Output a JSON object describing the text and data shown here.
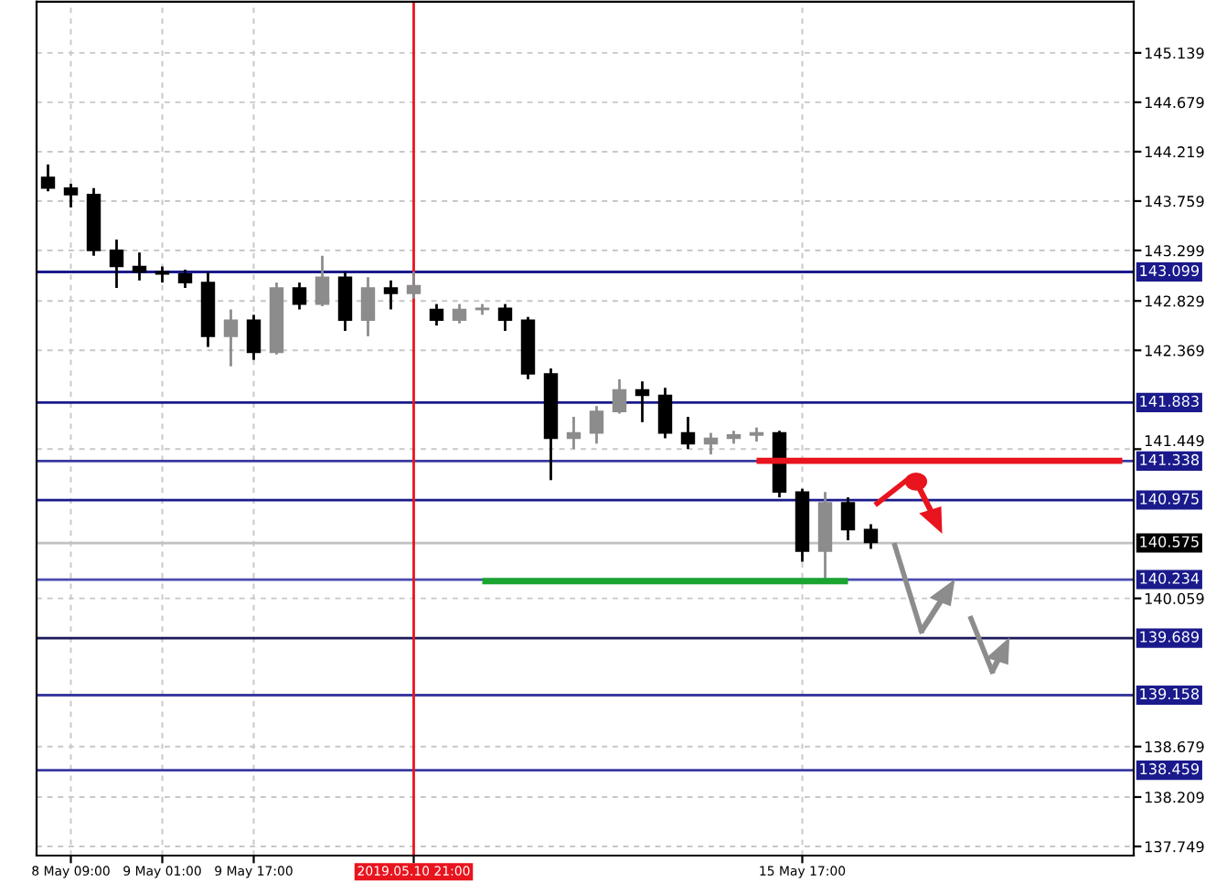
{
  "chart_data": {
    "type": "candlestick",
    "categories": [
      null,
      "8 May 09:00",
      null,
      null,
      null,
      "9 May 01:00",
      null,
      null,
      null,
      "9 May 17:00",
      null,
      null,
      null,
      null,
      null,
      null,
      "2019.05.10 21:00",
      null,
      null,
      null,
      null,
      null,
      null,
      null,
      null,
      null,
      null,
      null,
      null,
      null,
      null,
      null,
      null,
      "15 May 17:00",
      null,
      null,
      null,
      null,
      null,
      null,
      null,
      null,
      null,
      null,
      null,
      null,
      null,
      null
    ],
    "ohlc": [
      [
        143.98,
        144.1,
        143.85,
        143.88
      ],
      [
        143.88,
        143.92,
        143.7,
        143.82
      ],
      [
        143.82,
        143.88,
        143.25,
        143.3
      ],
      [
        143.3,
        143.4,
        142.95,
        143.15
      ],
      [
        143.15,
        143.28,
        143.02,
        143.1
      ],
      [
        143.1,
        143.15,
        143.0,
        143.08
      ],
      [
        143.08,
        143.12,
        142.95,
        143.0
      ],
      [
        143.0,
        143.1,
        142.4,
        142.5
      ],
      [
        142.5,
        142.75,
        142.22,
        142.65
      ],
      [
        142.65,
        142.7,
        142.28,
        142.35
      ],
      [
        142.35,
        143.0,
        142.33,
        142.95
      ],
      [
        142.95,
        143.0,
        142.75,
        142.8
      ],
      [
        142.8,
        143.25,
        142.78,
        143.05
      ],
      [
        143.05,
        143.1,
        142.55,
        142.65
      ],
      [
        142.65,
        143.05,
        142.5,
        142.95
      ],
      [
        142.95,
        143.02,
        142.75,
        142.9
      ],
      [
        142.9,
        143.1,
        142.85,
        142.97
      ],
      [
        142.75,
        142.8,
        142.6,
        142.65
      ],
      [
        142.65,
        142.8,
        142.62,
        142.75
      ],
      [
        142.75,
        142.8,
        142.7,
        142.76
      ],
      [
        142.76,
        142.8,
        142.55,
        142.65
      ],
      [
        142.65,
        142.68,
        142.1,
        142.15
      ],
      [
        142.15,
        142.2,
        141.16,
        141.55
      ],
      [
        141.55,
        141.75,
        141.45,
        141.6
      ],
      [
        141.6,
        141.85,
        141.5,
        141.8
      ],
      [
        141.8,
        142.1,
        141.78,
        142.0
      ],
      [
        142.0,
        142.08,
        141.7,
        141.95
      ],
      [
        141.95,
        142.02,
        141.55,
        141.6
      ],
      [
        141.6,
        141.75,
        141.45,
        141.5
      ],
      [
        141.5,
        141.6,
        141.4,
        141.55
      ],
      [
        141.55,
        141.62,
        141.5,
        141.58
      ],
      [
        141.58,
        141.65,
        141.52,
        141.6
      ],
      [
        141.6,
        141.62,
        141.0,
        141.05
      ],
      [
        141.05,
        141.08,
        140.4,
        140.5
      ],
      [
        140.5,
        141.05,
        140.23,
        140.95
      ],
      [
        140.95,
        141.0,
        140.6,
        140.7
      ],
      [
        140.7,
        140.75,
        140.52,
        140.58
      ],
      null,
      null,
      null,
      null,
      null,
      null,
      null,
      null,
      null,
      null,
      null
    ],
    "series": [
      {
        "type": "line",
        "color": "#e8141e",
        "values": [
          null,
          null,
          null,
          null,
          null,
          null,
          null,
          null,
          null,
          null,
          null,
          null,
          null,
          null,
          null,
          null,
          null,
          null,
          null,
          null,
          null,
          null,
          null,
          null,
          null,
          null,
          null,
          null,
          null,
          null,
          null,
          141.34,
          141.34,
          141.34,
          141.34,
          141.34,
          141.34,
          141.34,
          141.34,
          141.34,
          141.34,
          141.34,
          141.34,
          141.34,
          141.34,
          141.34,
          141.34,
          141.34
        ]
      },
      {
        "type": "line",
        "color": "#1aa531",
        "values": [
          null,
          null,
          null,
          null,
          null,
          null,
          null,
          null,
          null,
          null,
          null,
          null,
          null,
          null,
          null,
          null,
          null,
          null,
          null,
          140.22,
          140.22,
          140.22,
          140.22,
          140.22,
          140.22,
          140.22,
          140.22,
          140.22,
          140.22,
          140.22,
          140.22,
          140.22,
          140.22,
          140.22,
          140.22,
          140.22,
          null,
          null,
          null,
          null,
          null,
          null,
          null,
          null,
          null,
          null,
          null,
          null
        ]
      }
    ],
    "ylim": [
      137.664,
      145.615
    ],
    "yticks": [
      {
        "value": 145.139,
        "label": "145.139"
      },
      {
        "value": 144.679,
        "label": "144.679"
      },
      {
        "value": 144.219,
        "label": "144.219"
      },
      {
        "value": 143.759,
        "label": "143.759"
      },
      {
        "value": 143.299,
        "label": "143.299"
      },
      {
        "value": 142.829,
        "label": "142.829"
      },
      {
        "value": 142.369,
        "label": "142.369"
      },
      {
        "value": 141.449,
        "label": "141.449"
      },
      {
        "value": 140.059,
        "label": "140.059"
      },
      {
        "value": 138.679,
        "label": "138.679"
      },
      {
        "value": 138.209,
        "label": "138.209"
      },
      {
        "value": 137.749,
        "label": "137.749"
      }
    ],
    "ref_lines": [
      {
        "axis": "y",
        "value": 143.099,
        "label": "143.099",
        "color": "#1a1a8c"
      },
      {
        "axis": "y",
        "value": 141.883,
        "label": "141.883",
        "color": "#1a1a8c"
      },
      {
        "axis": "y",
        "value": 141.338,
        "label": "141.338",
        "color": "#3a3aa0"
      },
      {
        "axis": "y",
        "value": 140.975,
        "label": "140.975",
        "color": "#1a1a8c"
      },
      {
        "axis": "y",
        "value": 140.575,
        "label": "140.575",
        "color": "#c0c0c0"
      },
      {
        "axis": "y",
        "value": 140.234,
        "label": "140.234",
        "color": "#4a4ab0"
      },
      {
        "axis": "y",
        "value": 139.689,
        "label": "139.689",
        "color": "#1a1a5c"
      },
      {
        "axis": "y",
        "value": 139.158,
        "label": "139.158",
        "color": "#3a3aa0"
      },
      {
        "axis": "y",
        "value": 138.459,
        "label": "138.459",
        "color": "#3a3aa0"
      },
      {
        "axis": "x",
        "value": "2019.05.10 21:00",
        "color": "#e8141e"
      }
    ],
    "grid": true,
    "legend": false
  }
}
